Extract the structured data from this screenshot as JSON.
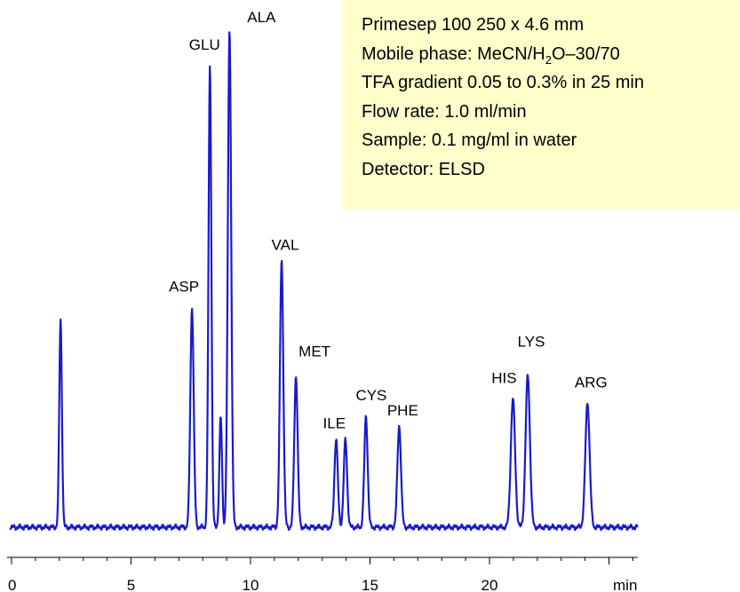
{
  "chart_data": {
    "type": "line",
    "xlabel": "min",
    "ylabel": "",
    "xlim": [
      -0.2,
      26.2
    ],
    "x_ticks": [
      0,
      5,
      10,
      15,
      20
    ],
    "minor_tick_step": 1,
    "grid": false,
    "line_color": "#1a1acc",
    "peaks": [
      {
        "label": "",
        "rt": 2.05,
        "height": 0.418,
        "width": 0.055
      },
      {
        "label": "ASP",
        "rt": 7.55,
        "height": 0.444,
        "width": 0.07
      },
      {
        "label": "GLU",
        "rt": 8.3,
        "height": 0.927,
        "width": 0.06
      },
      {
        "label": "",
        "rt": 8.75,
        "height": 0.221,
        "width": 0.055
      },
      {
        "label": "ALA",
        "rt": 9.12,
        "height": 1.0,
        "width": 0.07
      },
      {
        "label": "VAL",
        "rt": 11.3,
        "height": 0.538,
        "width": 0.07
      },
      {
        "label": "MET",
        "rt": 11.9,
        "height": 0.306,
        "width": 0.07
      },
      {
        "label": "ILE",
        "rt": 13.58,
        "height": 0.178,
        "width": 0.07
      },
      {
        "label": "",
        "rt": 13.97,
        "height": 0.176,
        "width": 0.07
      },
      {
        "label": "CYS",
        "rt": 14.83,
        "height": 0.223,
        "width": 0.07
      },
      {
        "label": "PHE",
        "rt": 16.22,
        "height": 0.204,
        "width": 0.075
      },
      {
        "label": "HIS",
        "rt": 20.98,
        "height": 0.258,
        "width": 0.09
      },
      {
        "label": "LYS",
        "rt": 21.6,
        "height": 0.306,
        "width": 0.09
      },
      {
        "label": "ARG",
        "rt": 24.1,
        "height": 0.251,
        "width": 0.09
      }
    ]
  },
  "info_box": {
    "column": "Primesep 100  250 x 4.6 mm",
    "mobile_phase_prefix": "Mobile phase: MeCN/H",
    "mobile_phase_sub": "2",
    "mobile_phase_suffix": "O–30/70",
    "gradient": "TFA gradient 0.05 to 0.3% in 25 min",
    "flow_rate": "Flow rate: 1.0 ml/min",
    "sample": "Sample: 0.1 mg/ml in water",
    "detector": "Detector: ELSD",
    "background_color": "#ffffcc"
  }
}
